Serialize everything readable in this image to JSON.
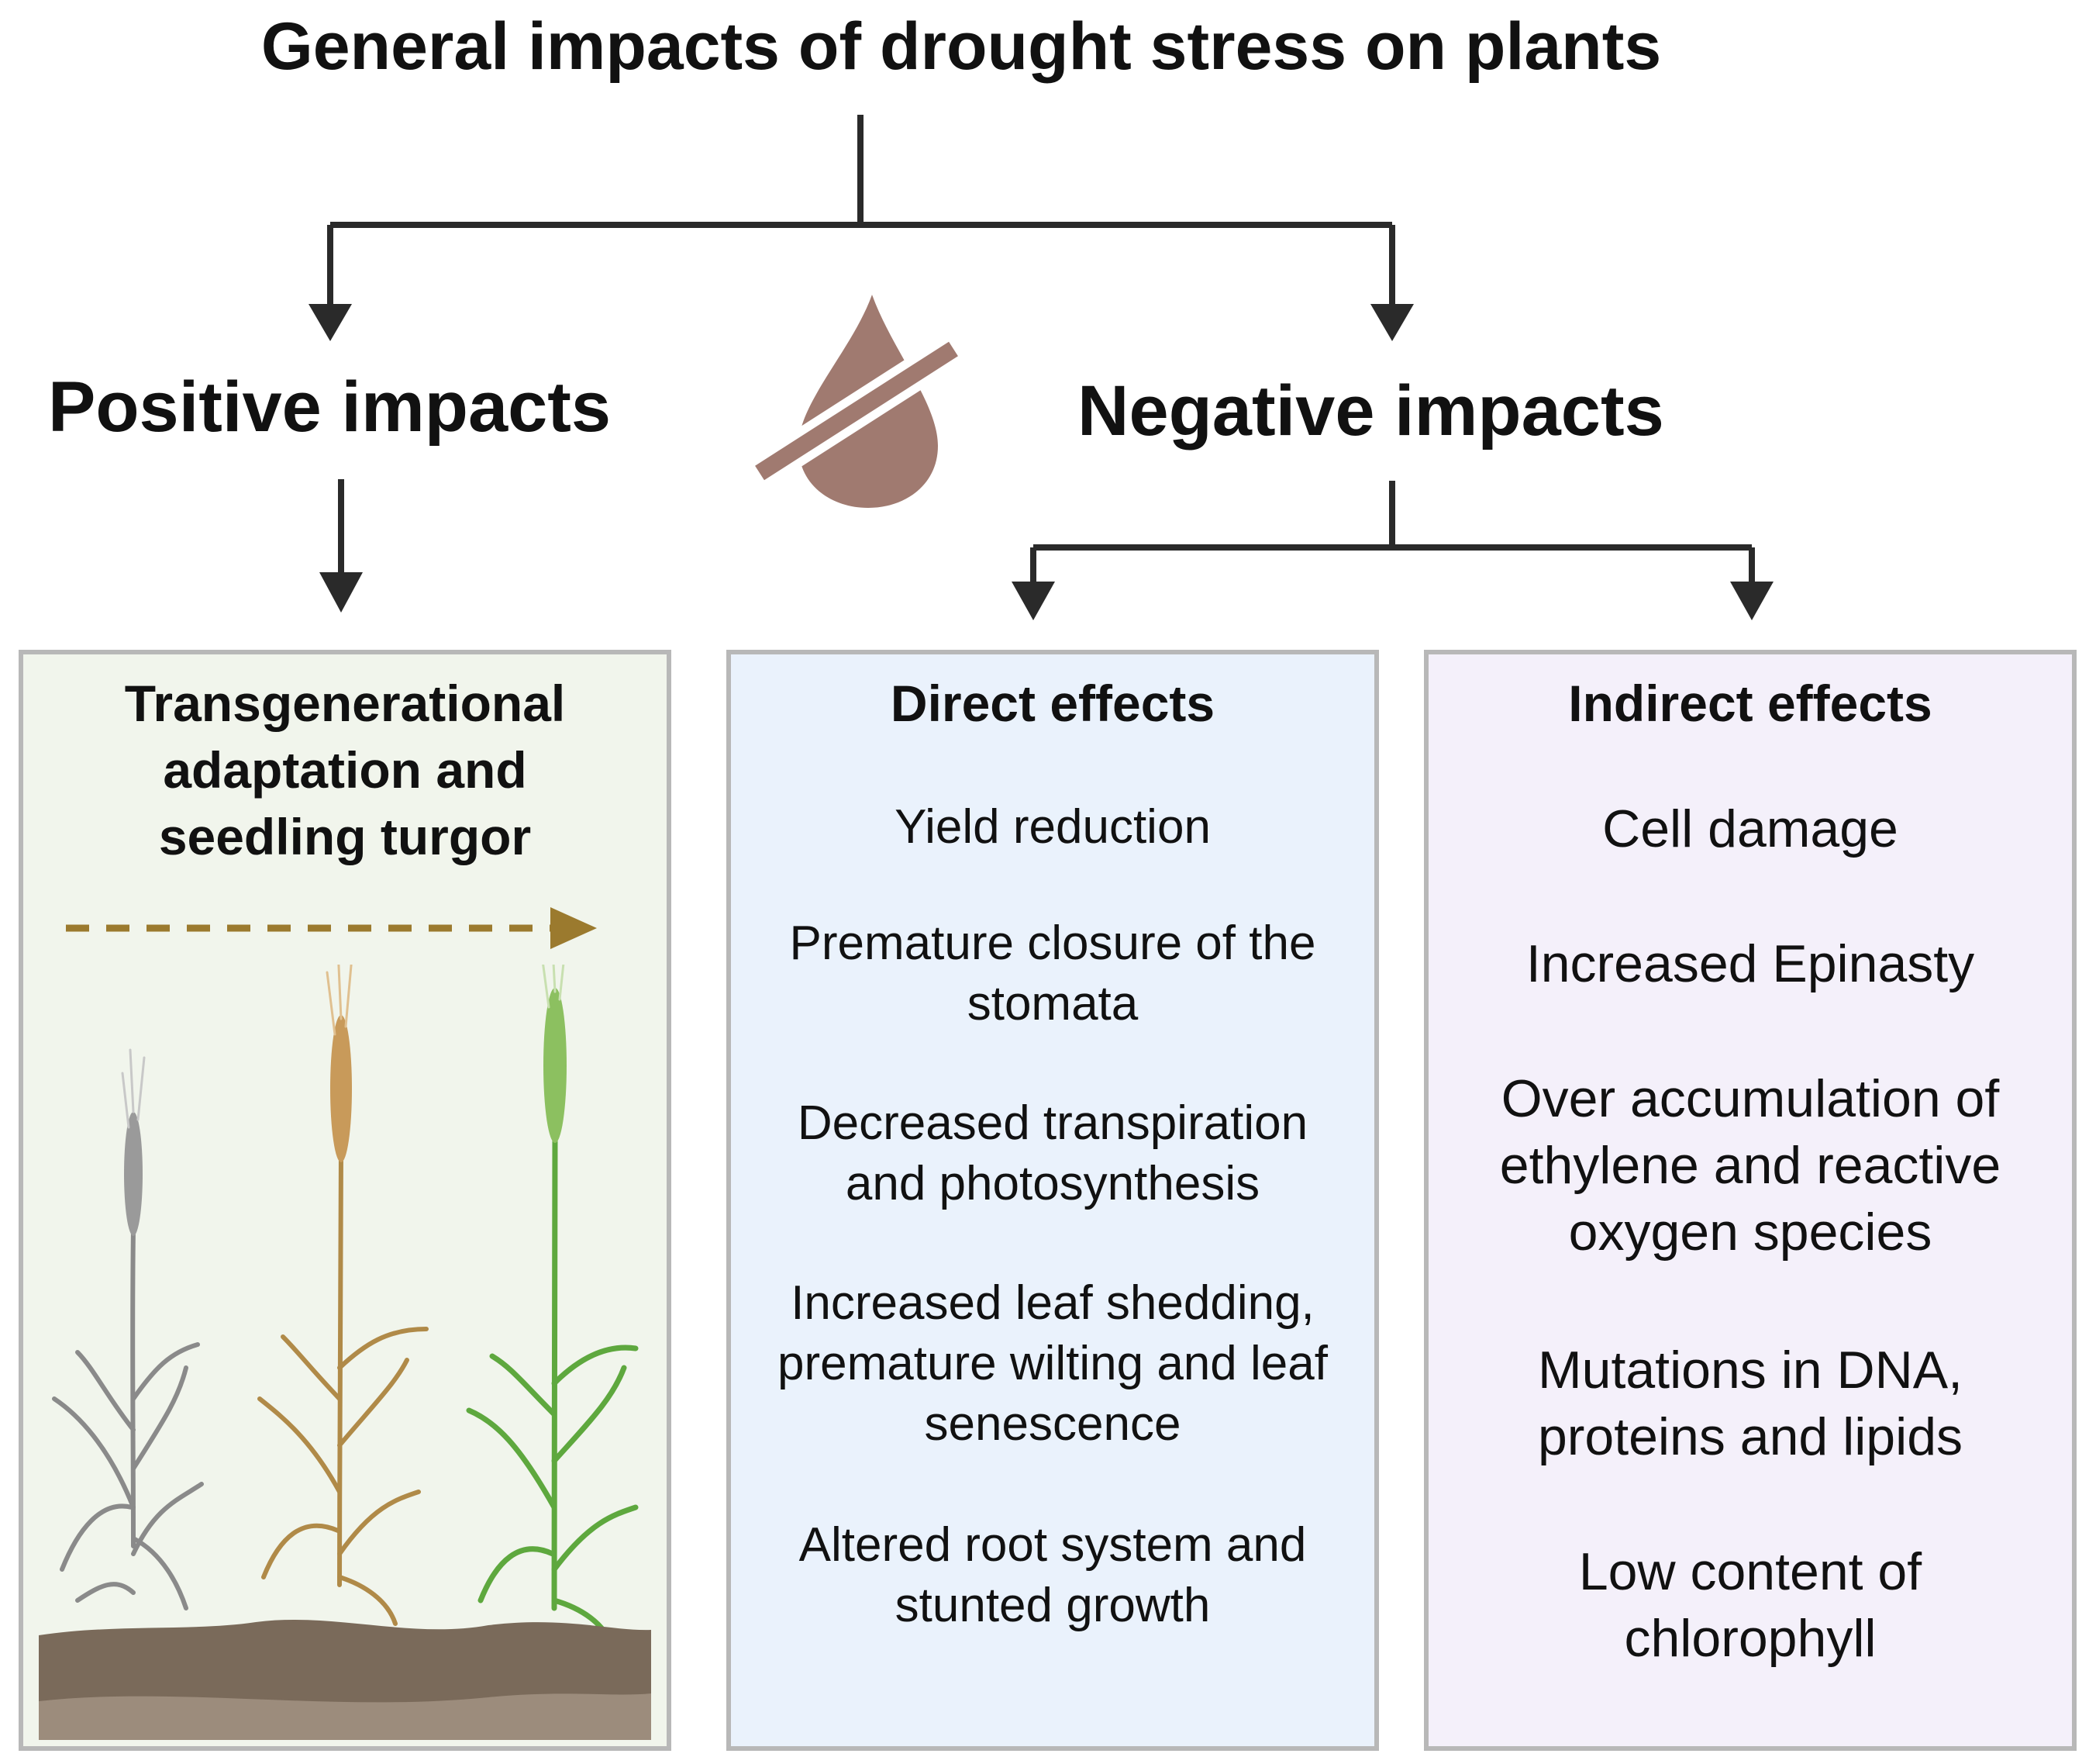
{
  "title": "General impacts of drought stress on plants",
  "positive": {
    "heading": "Positive impacts",
    "box_title_lines": [
      "Transgenerational",
      "adaptation and",
      "seedling turgor"
    ]
  },
  "negative": {
    "heading": "Negative impacts"
  },
  "direct": {
    "title": "Direct effects",
    "items": [
      [
        "Yield reduction"
      ],
      [
        "Premature closure of the",
        "stomata"
      ],
      [
        "Decreased transpiration",
        "and photosynthesis"
      ],
      [
        "Increased leaf shedding,",
        "premature wilting and leaf",
        "senescence"
      ],
      [
        "Altered root system and",
        "stunted growth"
      ]
    ]
  },
  "indirect": {
    "title": "Indirect effects",
    "items": [
      [
        "Cell damage"
      ],
      [
        "Increased Epinasty"
      ],
      [
        "Over accumulation of",
        "ethylene and reactive",
        "oxygen species"
      ],
      [
        "Mutations in DNA,",
        "proteins and lipids"
      ],
      [
        "Low content of",
        "chlorophyll"
      ]
    ]
  },
  "colors": {
    "arrow": "#2a2a2a",
    "drop": "#a07a70",
    "positive_box_bg": "#f1f5ec",
    "direct_box_bg": "#eaf2fc",
    "indirect_box_bg": "#f4f0fa",
    "dashed_arrow": "#9b7a2e",
    "soil_dark": "#7a6a5a",
    "soil_light": "#9c8c7c",
    "plant_grey": "#8a8a8a",
    "plant_brown": "#b08a48",
    "plant_green": "#5ea83e"
  }
}
